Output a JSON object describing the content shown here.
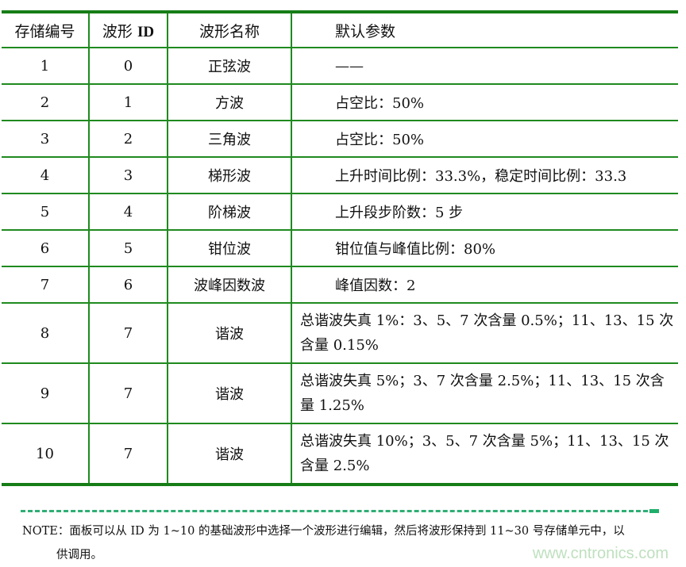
{
  "table": {
    "headers": [
      "存储编号",
      "波形",
      "ID",
      "波形名称",
      "默认参数"
    ],
    "rows": [
      {
        "no": "1",
        "id": "0",
        "name": "正弦波",
        "param": "——"
      },
      {
        "no": "2",
        "id": "1",
        "name": "方波",
        "param": "占空比：50%"
      },
      {
        "no": "3",
        "id": "2",
        "name": "三角波",
        "param": "占空比：50%"
      },
      {
        "no": "4",
        "id": "3",
        "name": "梯形波",
        "param": "上升时间比例：33.3%，稳定时间比例：33.3"
      },
      {
        "no": "5",
        "id": "4",
        "name": "阶梯波",
        "param": "上升段步阶数：5 步"
      },
      {
        "no": "6",
        "id": "5",
        "name": "钳位波",
        "param": "钳位值与峰值比例：80%"
      },
      {
        "no": "7",
        "id": "6",
        "name": "波峰因数波",
        "param": "峰值因数：2"
      },
      {
        "no": "8",
        "id": "7",
        "name": "谐波",
        "param": "总谐波失真 1%：3、5、7 次含量 0.5%；11、13、15 次含量 0.15%"
      },
      {
        "no": "9",
        "id": "7",
        "name": "谐波",
        "param": "总谐波失真 5%；3、7 次含量 2.5%；11、13、15 次含量 1.25%"
      },
      {
        "no": "10",
        "id": "7",
        "name": "谐波",
        "param": "总谐波失真 10%；3、5、7 次含量 5%；11、13、15 次含量 2.5%"
      }
    ]
  },
  "note": {
    "line1": "NOTE：面板可以从 ID 为 1~10 的基础波形中选择一个波形进行编辑，然后将波形保持到 11~30 号存储单元中，以",
    "line2": "供调用。"
  },
  "watermark": "www.cntronics.com",
  "colors": {
    "rule": "#167d16",
    "dash": "#2fae74"
  }
}
